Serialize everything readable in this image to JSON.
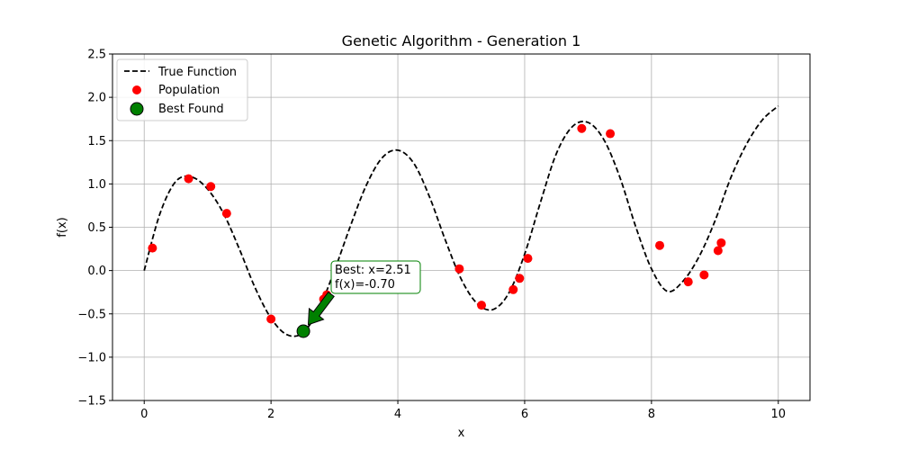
{
  "chart_data": {
    "type": "line",
    "title": "Genetic Algorithm - Generation 1",
    "xlabel": "x",
    "ylabel": "f(x)",
    "xlim": [
      -0.5,
      10.5
    ],
    "ylim": [
      -1.5,
      2.5
    ],
    "x_ticks": [
      0,
      2,
      4,
      6,
      8,
      10
    ],
    "x_tick_labels": [
      "0",
      "2",
      "4",
      "6",
      "8",
      "10"
    ],
    "y_ticks": [
      -1.5,
      -1.0,
      -0.5,
      0.0,
      0.5,
      1.0,
      1.5,
      2.0,
      2.5
    ],
    "y_tick_labels": [
      "−1.5",
      "−1.0",
      "−0.5",
      "0.0",
      "0.5",
      "1.0",
      "1.5",
      "2.0",
      "2.5"
    ],
    "grid": true,
    "legend_position": "top-left",
    "series": [
      {
        "name": "True Function",
        "kind": "line",
        "style": "dashed",
        "color": "#000000",
        "x": [
          0.0,
          0.25,
          0.5,
          0.75,
          1.0,
          1.25,
          1.5,
          1.75,
          2.0,
          2.25,
          2.5,
          2.75,
          3.0,
          3.25,
          3.5,
          3.75,
          4.0,
          4.25,
          4.5,
          4.75,
          5.0,
          5.25,
          5.5,
          5.75,
          6.0,
          6.25,
          6.5,
          6.75,
          7.0,
          7.25,
          7.5,
          7.75,
          8.0,
          8.25,
          8.5,
          8.75,
          9.0,
          9.25,
          9.5,
          9.75,
          10.0
        ],
        "y": [
          0.0,
          0.66,
          1.03,
          1.08,
          0.94,
          0.66,
          0.25,
          -0.2,
          -0.55,
          -0.74,
          -0.72,
          -0.45,
          0.0,
          0.51,
          0.98,
          1.3,
          1.39,
          1.24,
          0.85,
          0.35,
          -0.1,
          -0.38,
          -0.45,
          -0.26,
          0.19,
          0.79,
          1.35,
          1.66,
          1.71,
          1.51,
          1.08,
          0.51,
          0.02,
          -0.24,
          -0.12,
          0.16,
          0.57,
          1.07,
          1.46,
          1.74,
          1.9
        ]
      },
      {
        "name": "Population",
        "kind": "scatter",
        "color": "#ff0000",
        "x": [
          0.13,
          0.7,
          1.05,
          1.3,
          2.0,
          2.83,
          2.88,
          4.97,
          5.32,
          5.82,
          5.92,
          6.05,
          6.9,
          7.35,
          8.13,
          8.58,
          8.83,
          9.05,
          9.1
        ],
        "y": [
          0.26,
          1.06,
          0.97,
          0.66,
          -0.56,
          -0.33,
          -0.28,
          0.02,
          -0.4,
          -0.22,
          -0.09,
          0.14,
          1.64,
          1.58,
          0.29,
          -0.13,
          -0.05,
          0.23,
          0.32
        ]
      },
      {
        "name": "Best Found",
        "kind": "scatter",
        "color": "#008000",
        "x": [
          2.51
        ],
        "y": [
          -0.7
        ]
      }
    ],
    "annotation": {
      "lines": [
        "Best: x=2.51",
        "f(x)=-0.70"
      ],
      "target": [
        2.51,
        -0.7
      ],
      "text_at": [
        3.0,
        -0.1
      ],
      "box_color": "#008000",
      "arrow_color": "#008000"
    }
  }
}
